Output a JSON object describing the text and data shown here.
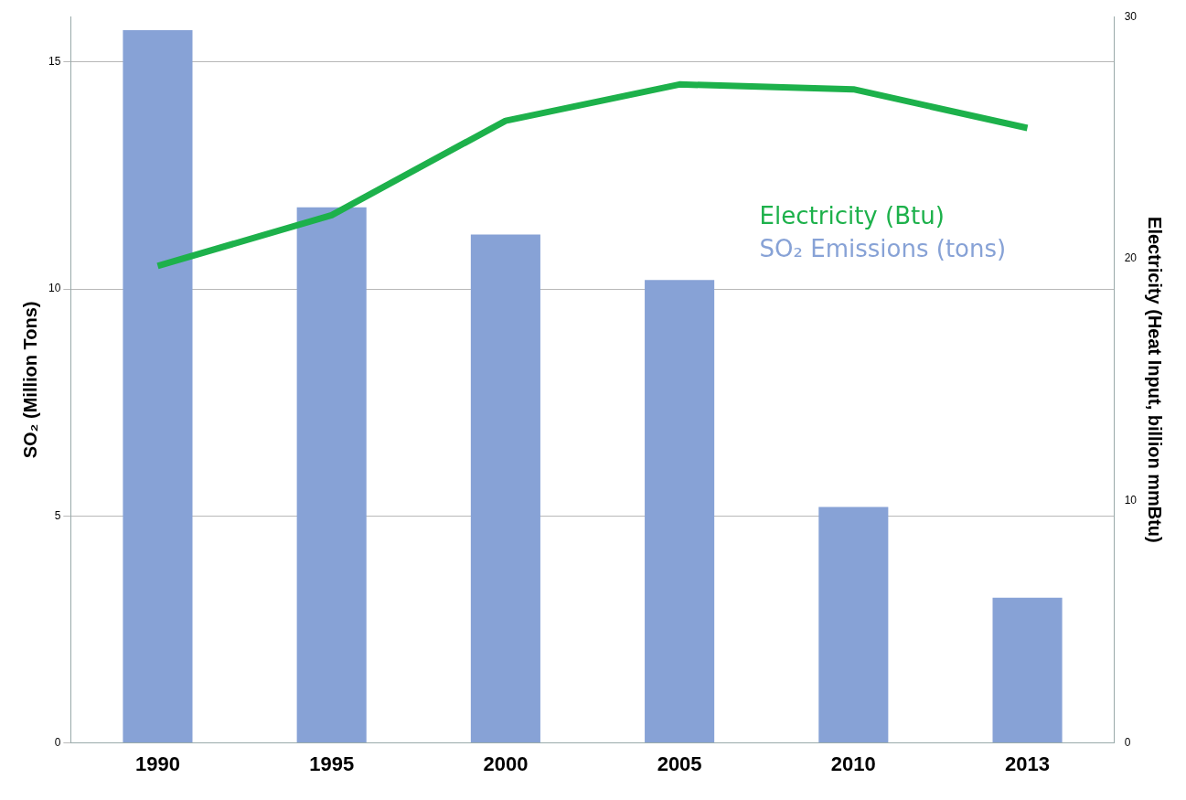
{
  "chart_data": {
    "type": "bar",
    "categories": [
      "1990",
      "1995",
      "2000",
      "2005",
      "2010",
      "2013"
    ],
    "series": [
      {
        "name": "Electricity (Btu)",
        "type": "line",
        "axis": "y2",
        "color": "#1db14b",
        "values": [
          19.7,
          21.8,
          25.7,
          27.2,
          27.0,
          25.4
        ]
      },
      {
        "name": "SO₂ Emissions (tons)",
        "color": "#87a2d6",
        "values": [
          15.7,
          11.8,
          11.2,
          10.2,
          5.2,
          3.2
        ]
      }
    ],
    "ylabel": "SO₂ (Million Tons)",
    "y2label": "Electricity (Heat Input, billion mmBtu)",
    "ylim": [
      0,
      16
    ],
    "yticks": [
      0,
      5,
      10,
      15
    ],
    "y2lim": [
      0,
      30
    ],
    "y2ticks": [
      0,
      10,
      20,
      30
    ],
    "grid": "y",
    "legend": "top right",
    "marker": "none"
  }
}
